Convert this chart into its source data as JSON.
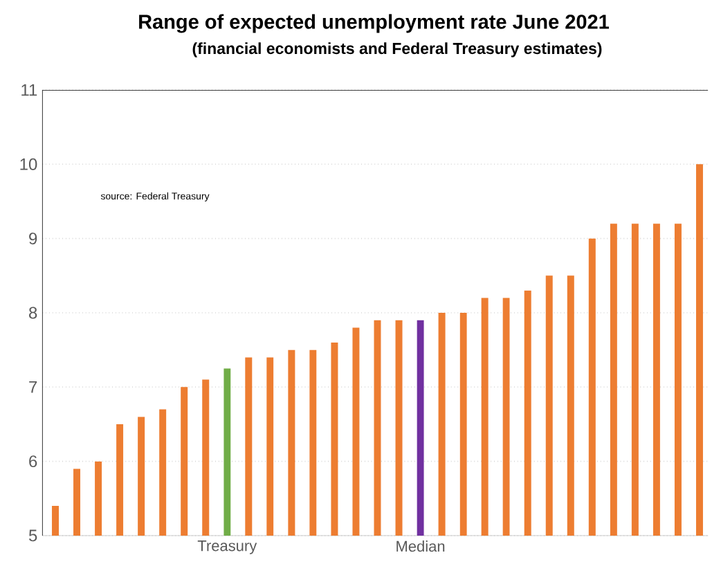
{
  "chart_data": {
    "type": "bar",
    "title": "Range of expected unemployment rate June 2021",
    "subtitle": "(financial economists  and Federal Treasury estimates)",
    "categories": [
      null,
      null,
      null,
      null,
      null,
      null,
      null,
      null,
      "Treasury",
      null,
      null,
      null,
      null,
      null,
      null,
      null,
      null,
      "Median",
      null,
      null,
      null,
      null,
      null,
      null,
      null,
      null,
      null,
      null,
      null,
      null,
      null
    ],
    "values": [
      5.4,
      5.9,
      6.0,
      6.5,
      6.6,
      6.7,
      7.0,
      7.1,
      7.25,
      7.4,
      7.4,
      7.5,
      7.5,
      7.6,
      7.8,
      7.9,
      7.9,
      7.9,
      8.0,
      8.0,
      8.2,
      8.2,
      8.3,
      8.5,
      8.5,
      9.0,
      9.2,
      9.2,
      9.2,
      9.2,
      10.0
    ],
    "colors": [
      "#ed7d31",
      "#ed7d31",
      "#ed7d31",
      "#ed7d31",
      "#ed7d31",
      "#ed7d31",
      "#ed7d31",
      "#ed7d31",
      "#70ad47",
      "#ed7d31",
      "#ed7d31",
      "#ed7d31",
      "#ed7d31",
      "#ed7d31",
      "#ed7d31",
      "#ed7d31",
      "#ed7d31",
      "#7030a0",
      "#ed7d31",
      "#ed7d31",
      "#ed7d31",
      "#ed7d31",
      "#ed7d31",
      "#ed7d31",
      "#ed7d31",
      "#ed7d31",
      "#ed7d31",
      "#ed7d31",
      "#ed7d31",
      "#ed7d31",
      "#ed7d31"
    ],
    "ylim": [
      5,
      11
    ],
    "yticks": [
      5,
      6,
      7,
      8,
      9,
      10,
      11
    ],
    "grid": "y",
    "annotations": [
      "source:  Federal Treasury"
    ]
  }
}
